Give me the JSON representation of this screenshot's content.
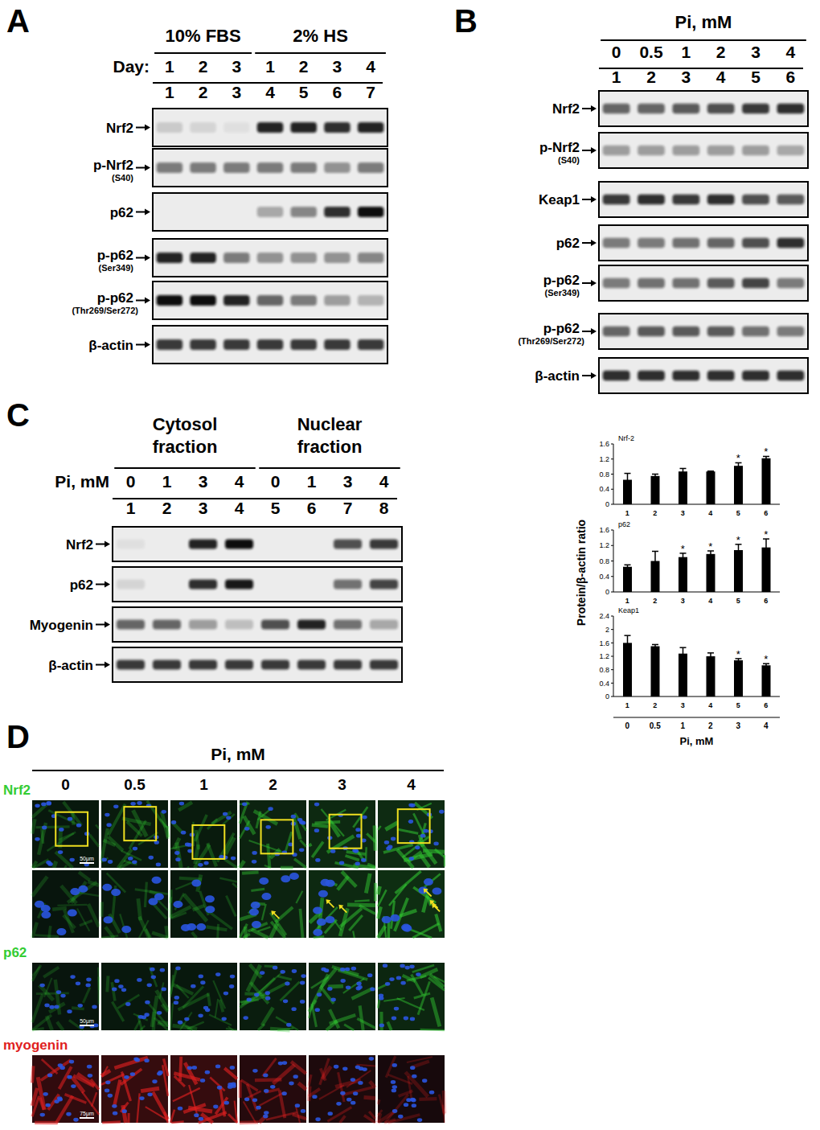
{
  "blot_panels": [
    {
      "panel": "A",
      "groups": [
        {
          "title": [
            "10% FBS"
          ],
          "labels": [
            "1",
            "2",
            "3"
          ]
        },
        {
          "title": [
            "2% HS"
          ],
          "labels": [
            "1",
            "2",
            "3",
            "4"
          ]
        }
      ],
      "row_title": "Day:",
      "lanes": [
        "1",
        "2",
        "3",
        "4",
        "5",
        "6",
        "7"
      ],
      "blots": [
        {
          "name": "Nrf2",
          "bands": [
            0.15,
            0.1,
            0.05,
            0.9,
            0.9,
            0.85,
            0.9
          ]
        },
        {
          "name": "p-Nrf2",
          "sub": "(S40)",
          "bands": [
            0.5,
            0.5,
            0.5,
            0.5,
            0.5,
            0.4,
            0.5
          ]
        },
        {
          "name": "p62",
          "bands": [
            0,
            0,
            0,
            0.3,
            0.45,
            0.85,
            1
          ]
        },
        {
          "name": "p-p62",
          "sub": "(Ser349)",
          "bands": [
            0.9,
            0.9,
            0.5,
            0.4,
            0.4,
            0.4,
            0.45
          ]
        },
        {
          "name": "p-p62",
          "sub": "(Thr269/Ser272)",
          "bands": [
            1,
            1,
            0.9,
            0.6,
            0.5,
            0.35,
            0.25
          ]
        },
        {
          "name": "β-actin",
          "bands": [
            0.8,
            0.8,
            0.8,
            0.8,
            0.8,
            0.8,
            0.8
          ]
        }
      ]
    },
    {
      "panel": "B",
      "groups": [
        {
          "title": [
            "Pi, mM"
          ],
          "labels": [
            "0",
            "0.5",
            "1",
            "2",
            "3",
            "4"
          ]
        }
      ],
      "lanes": [
        "1",
        "2",
        "3",
        "4",
        "5",
        "6"
      ],
      "blots": [
        {
          "name": "Nrf2",
          "bands": [
            0.6,
            0.6,
            0.65,
            0.7,
            0.8,
            0.85
          ]
        },
        {
          "name": "p-Nrf2",
          "sub": "(S40)",
          "bands": [
            0.35,
            0.35,
            0.35,
            0.35,
            0.35,
            0.3
          ]
        },
        {
          "name": "Keap1",
          "bands": [
            0.8,
            0.85,
            0.8,
            0.85,
            0.7,
            0.65
          ]
        },
        {
          "name": "p62",
          "bands": [
            0.5,
            0.5,
            0.55,
            0.6,
            0.7,
            0.85
          ]
        },
        {
          "name": "p-p62",
          "sub": "(Ser349)",
          "bands": [
            0.5,
            0.55,
            0.55,
            0.65,
            0.75,
            0.5
          ]
        },
        {
          "name": "p-p62",
          "sub": "(Thr269/Ser272)",
          "bands": [
            0.6,
            0.65,
            0.65,
            0.65,
            0.55,
            0.5
          ]
        },
        {
          "name": "β-actin",
          "bands": [
            0.85,
            0.85,
            0.85,
            0.85,
            0.85,
            0.85
          ]
        }
      ]
    },
    {
      "panel": "C",
      "groups": [
        {
          "title": [
            "Cytosol",
            "fraction"
          ],
          "labels": [
            "0",
            "1",
            "3",
            "4"
          ]
        },
        {
          "title": [
            "Nuclear",
            "fraction"
          ],
          "labels": [
            "0",
            "1",
            "3",
            "4"
          ]
        }
      ],
      "row_title": "Pi, mM",
      "lanes": [
        "1",
        "2",
        "3",
        "4",
        "5",
        "6",
        "7",
        "8"
      ],
      "blots": [
        {
          "name": "Nrf2",
          "bands": [
            0.05,
            0,
            0.9,
            1,
            0,
            0,
            0.7,
            0.8
          ]
        },
        {
          "name": "p62",
          "bands": [
            0.1,
            0,
            0.85,
            0.95,
            0,
            0,
            0.55,
            0.75
          ]
        },
        {
          "name": "Myogenin",
          "bands": [
            0.6,
            0.6,
            0.35,
            0.2,
            0.7,
            0.9,
            0.55,
            0.3
          ]
        },
        {
          "name": "β-actin",
          "bands": [
            0.8,
            0.8,
            0.8,
            0.8,
            0.8,
            0.8,
            0.8,
            0.8
          ]
        }
      ]
    }
  ],
  "chart_data": [
    {
      "type": "bar",
      "title": "Nrf-2",
      "categories": [
        "1",
        "2",
        "3",
        "4",
        "5",
        "6"
      ],
      "values": [
        0.65,
        0.75,
        0.87,
        0.87,
        1.02,
        1.22
      ],
      "errors": [
        0.17,
        0.05,
        0.08,
        0.01,
        0.08,
        0.05
      ],
      "significant": [
        false,
        false,
        false,
        false,
        true,
        true
      ],
      "ylim": [
        0,
        1.6
      ],
      "yticks": [
        0,
        0.4,
        0.8,
        1.2,
        1.6
      ],
      "color": "#000000"
    },
    {
      "type": "bar",
      "title": "p62",
      "categories": [
        "1",
        "2",
        "3",
        "4",
        "5",
        "6"
      ],
      "values": [
        0.65,
        0.8,
        0.9,
        0.98,
        1.08,
        1.15
      ],
      "errors": [
        0.05,
        0.25,
        0.1,
        0.08,
        0.15,
        0.22
      ],
      "significant": [
        false,
        false,
        true,
        true,
        true,
        true
      ],
      "ylim": [
        0,
        1.6
      ],
      "yticks": [
        0,
        0.4,
        0.8,
        1.2,
        1.6
      ],
      "color": "#000000"
    },
    {
      "type": "bar",
      "title": "Keap1",
      "categories": [
        "1",
        "2",
        "3",
        "4",
        "5",
        "6"
      ],
      "values": [
        1.6,
        1.5,
        1.28,
        1.2,
        1.08,
        0.93
      ],
      "errors": [
        0.22,
        0.05,
        0.18,
        0.1,
        0.05,
        0.05
      ],
      "significant": [
        false,
        false,
        false,
        false,
        true,
        true
      ],
      "ylim": [
        0,
        2.4
      ],
      "yticks": [
        0,
        0.4,
        0.8,
        1.2,
        1.6,
        2,
        2.4
      ],
      "color": "#000000"
    }
  ],
  "shared_axes": {
    "ylabel": "Protein/β-actin ratio",
    "xlabel": "Pi, mM",
    "x_secondary": [
      "0",
      "0.5",
      "1",
      "2",
      "3",
      "4"
    ],
    "significance_label": "*"
  },
  "imaging": {
    "panel": "D",
    "header": "Pi, mM",
    "concentrations": [
      "0",
      "0.5",
      "1",
      "2",
      "3",
      "4"
    ],
    "stains": [
      {
        "label": "Nrf2",
        "color": "#33cc33",
        "rows": [
          {
            "intensity": [
              0.35,
              0.4,
              0.4,
              0.6,
              0.7,
              0.75
            ],
            "scale_bar": "50μm",
            "boxes": true
          },
          {
            "intensity": [
              0.3,
              0.35,
              0.35,
              0.6,
              0.7,
              0.8
            ],
            "arrows": [
              0,
              0,
              0,
              1,
              2,
              3
            ]
          }
        ]
      },
      {
        "label": "p62",
        "color": "#33cc33",
        "rows": [
          {
            "intensity": [
              0.3,
              0.35,
              0.35,
              0.45,
              0.6,
              0.65
            ],
            "scale_bar": "50μm"
          }
        ]
      },
      {
        "label": "myogenin",
        "color": "#e02020",
        "rows": [
          {
            "intensity": [
              0.8,
              0.9,
              0.9,
              0.6,
              0.45,
              0.35
            ],
            "scale_bar": "75μm"
          }
        ]
      }
    ]
  }
}
